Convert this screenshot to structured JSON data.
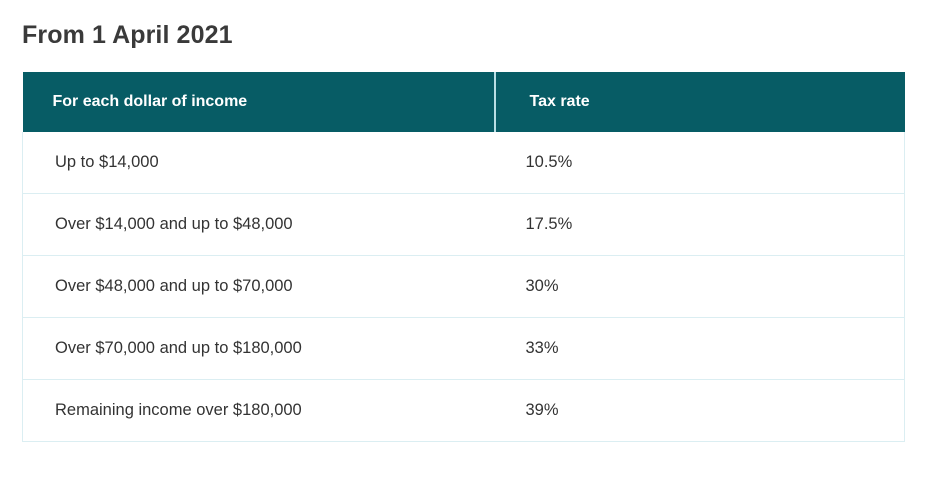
{
  "heading": "From 1 April 2021",
  "table": {
    "headers": [
      "For each dollar of income",
      "Tax rate"
    ],
    "rows": [
      [
        "Up to $14,000",
        "10.5%"
      ],
      [
        "Over $14,000 and up to $48,000",
        "17.5%"
      ],
      [
        "Over $48,000 and up to $70,000",
        "30%"
      ],
      [
        "Over $70,000 and up to $180,000",
        "33%"
      ],
      [
        "Remaining income over $180,000",
        "39%"
      ]
    ]
  },
  "colors": {
    "header_background": "#075c65",
    "header_text": "#ffffff",
    "row_border": "#dbeef2"
  }
}
